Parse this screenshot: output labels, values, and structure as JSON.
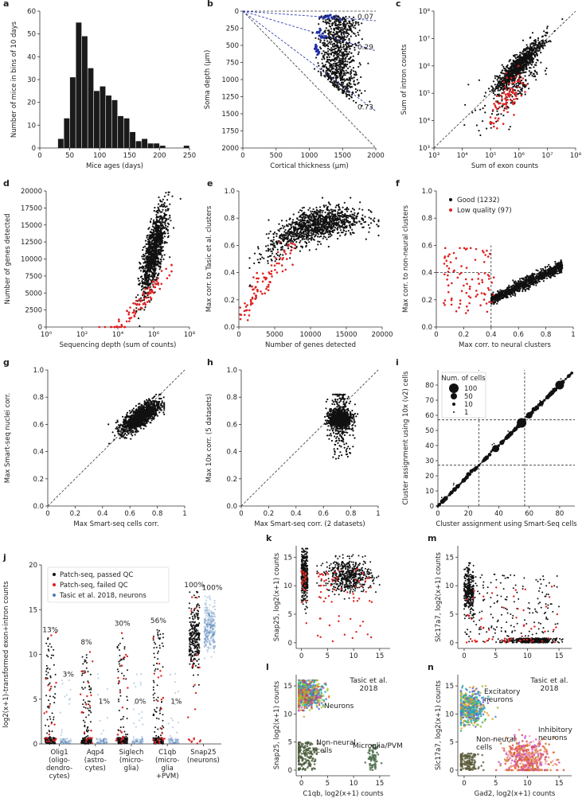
{
  "colors": {
    "good": "#111111",
    "bad": "#dd2222",
    "tasic": "#4a7db5",
    "ratio": "#1f2ea8"
  },
  "panels": [
    {
      "letter": "a",
      "type": "bar",
      "xlabel": "Mice ages (days)",
      "ylabel": "Number of mice in bins of 10 days",
      "xlim": [
        0,
        250
      ],
      "ylim": [
        0,
        60
      ],
      "xticks": [
        0,
        50,
        100,
        150,
        200,
        250
      ],
      "yticks": [
        0,
        10,
        20,
        30,
        40,
        50,
        60
      ],
      "bins": [
        30,
        40,
        50,
        60,
        70,
        80,
        90,
        100,
        110,
        120,
        130,
        140,
        150,
        160,
        170,
        180,
        190,
        200,
        240
      ],
      "values": [
        4,
        13,
        31,
        55,
        49,
        35,
        25,
        27,
        23,
        21,
        14,
        13,
        7,
        3,
        4,
        2,
        2,
        1,
        1
      ]
    },
    {
      "letter": "b",
      "type": "scatter",
      "xlabel": "Cortical thickness (µm)",
      "ylabel": "Soma depth (µm)",
      "xlim": [
        0,
        2000
      ],
      "ylim": [
        0,
        2000
      ],
      "yinverted": true,
      "xticks": [
        0,
        500,
        1000,
        1500,
        2000
      ],
      "yticks": [
        0,
        250,
        500,
        750,
        1000,
        1250,
        1500,
        1750,
        2000
      ],
      "ratios": [
        "0.07",
        "0.29",
        "0.73"
      ]
    },
    {
      "letter": "c",
      "type": "scatter",
      "xlabel": "Sum of exon counts",
      "ylabel": "Sum of intron counts",
      "log": true,
      "xticks": [
        "10³",
        "10⁴",
        "10⁵",
        "10⁶",
        "10⁷",
        "10⁸"
      ],
      "yticks": [
        "10³",
        "10⁴",
        "10⁵",
        "10⁶",
        "10⁷",
        "10⁸"
      ]
    },
    {
      "letter": "d",
      "type": "scatter",
      "xlabel": "Sequencing depth (sum of counts)",
      "ylabel": "Number of genes detected",
      "xticks": [
        "10⁰",
        "10²",
        "10⁴",
        "10⁶",
        "10⁸"
      ],
      "yticks": [
        0,
        2500,
        5000,
        7500,
        10000,
        12500,
        15000,
        17500,
        20000
      ]
    },
    {
      "letter": "e",
      "type": "scatter",
      "xlabel": "Number of genes detected",
      "ylabel": "Max corr. to Tasic et al. clusters",
      "xticks": [
        0,
        5000,
        10000,
        15000,
        20000
      ],
      "yticks": [
        0.0,
        0.2,
        0.4,
        0.6,
        0.8,
        1.0
      ]
    },
    {
      "letter": "f",
      "type": "scatter",
      "xlabel": "Max corr. to neural clusters",
      "ylabel": "Max corr. to non-neural clusters",
      "xticks": [
        0.0,
        0.2,
        0.4,
        0.6,
        0.8,
        1.0
      ],
      "yticks": [
        0.0,
        0.2,
        0.4,
        0.6,
        0.8,
        1.0
      ],
      "legend": [
        "Good (1232)",
        "Low quality (97)"
      ]
    },
    {
      "letter": "g",
      "type": "scatter",
      "xlabel": "Max Smart-seq cells corr.",
      "ylabel": "Max Smart-seq nuclei corr.",
      "xticks": [
        0.0,
        0.2,
        0.4,
        0.6,
        0.8,
        1.0
      ],
      "yticks": [
        0.0,
        0.2,
        0.4,
        0.6,
        0.8,
        1.0
      ]
    },
    {
      "letter": "h",
      "type": "scatter",
      "xlabel": "Max Smart-seq corr. (2 datasets)",
      "ylabel": "Max 10x corr. (5 datasets)",
      "xticks": [
        0.0,
        0.2,
        0.4,
        0.6,
        0.8,
        1.0
      ],
      "yticks": [
        0.0,
        0.2,
        0.4,
        0.6,
        0.8,
        1.0
      ]
    },
    {
      "letter": "i",
      "type": "scatter",
      "xlabel": "Cluster assignment using Smart-Seq cells",
      "ylabel": "Cluster assignment using 10x (v2) cells",
      "xticks": [
        0,
        20,
        40,
        60,
        80
      ],
      "yticks": [
        0,
        10,
        20,
        30,
        40,
        50,
        60,
        70,
        80
      ],
      "legend_title": "Num. of cells",
      "legend": [
        "100",
        "50",
        "10",
        "1"
      ]
    },
    {
      "letter": "j",
      "type": "strip",
      "ylabel": "log2(x+1)-transformed exon+intron counts",
      "ylim": [
        0,
        20
      ],
      "yticks": [
        0,
        5,
        10,
        15,
        20
      ],
      "legend": [
        "Patch-seq, passed QC",
        "Patch-seq, failed QC",
        "Tasic et al. 2018, neurons"
      ],
      "genes": [
        {
          "label": "Olig1\n(oligo-\ndendro-\ncytes)",
          "pct": "13%",
          "tpct": "3%"
        },
        {
          "label": "Aqp4\n(astro-\ncytes)",
          "pct": "8%",
          "tpct": "1%"
        },
        {
          "label": "Siglech\n(micro-\nglia)",
          "pct": "30%",
          "tpct": "0%"
        },
        {
          "label": "C1qb\n(micro-\nglia\n+PVM)",
          "pct": "56%",
          "tpct": "1%"
        },
        {
          "label": "Snap25\n(neurons)",
          "pct": "100%",
          "tpct": "100%"
        }
      ]
    },
    {
      "letter": "k",
      "type": "scatter",
      "ylabel": "Snap25, log2(x+1) counts",
      "xticks": [
        0,
        5,
        10,
        15
      ],
      "yticks": [
        0,
        5,
        10,
        15
      ]
    },
    {
      "letter": "m",
      "type": "scatter",
      "ylabel": "Slc17a7, log2(x+1) counts",
      "xticks": [
        0,
        5,
        10,
        15
      ],
      "yticks": [
        0,
        5,
        10,
        15
      ]
    },
    {
      "letter": "l",
      "type": "scatter",
      "xlabel": "C1qb, log2(x+1) counts",
      "ylabel": "Snap25, log2(x+1) counts",
      "xticks": [
        0,
        5,
        10,
        15
      ],
      "yticks": [
        0,
        5,
        10,
        15
      ],
      "annotations": [
        "Tasic et al.\n2018",
        "Neurons",
        "Non-neural\ncells",
        "Microglia/PVM"
      ]
    },
    {
      "letter": "n",
      "type": "scatter",
      "xlabel": "Gad2, log2(x+1) counts",
      "ylabel": "Slc17a7, log2(x+1) counts",
      "xticks": [
        0,
        5,
        10,
        15
      ],
      "yticks": [
        0,
        5,
        10,
        15
      ],
      "annotations": [
        "Tasic et al.\n2018",
        "Excitatory\nneurons",
        "Inhibitory\nneurons",
        "Non-neural\ncells"
      ]
    }
  ]
}
